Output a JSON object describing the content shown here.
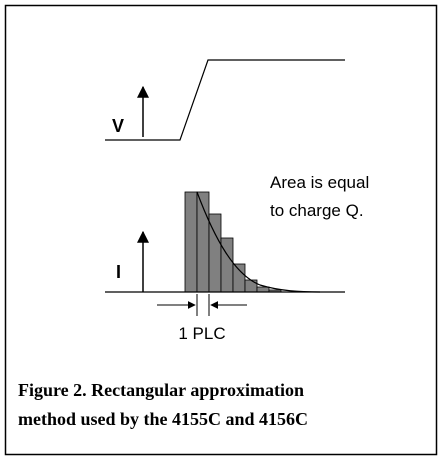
{
  "voltage_label": "V",
  "current_label": "I",
  "annotation": [
    "Area is equal",
    "to charge Q."
  ],
  "interval_label": "1 PLC",
  "caption": [
    "Figure 2. Rectangular approximation",
    "method used by the 4155C and 4156C"
  ]
}
